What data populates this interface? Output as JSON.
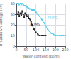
{
  "chart_data": {
    "type": "line",
    "xlabel": "Water content (ppm)",
    "ylabel": "Breakdown voltage (kV)",
    "series": [
      {
        "color": "#222222",
        "marker": "square",
        "line_style": "solid",
        "x": [
          5,
          10,
          15,
          20,
          25,
          30,
          35,
          40,
          45,
          50,
          55,
          60,
          65,
          70,
          75,
          80,
          90,
          100,
          110,
          120,
          130,
          140,
          150
        ],
        "values": [
          30,
          32,
          28,
          31,
          29,
          33,
          30,
          27,
          31,
          30,
          28,
          29,
          26,
          25,
          23,
          20,
          16,
          13,
          11,
          10,
          10,
          10,
          10
        ]
      },
      {
        "color": "#55ccee",
        "marker": "square",
        "line_style": "solid",
        "x": [
          5,
          10,
          15,
          20,
          25,
          30,
          35,
          40,
          45,
          50,
          55,
          60,
          70,
          80,
          90,
          100,
          110,
          120,
          130,
          140,
          150,
          160,
          170,
          180,
          190,
          200,
          210,
          220,
          230,
          240,
          250
        ],
        "values": [
          40,
          40,
          39,
          40,
          39,
          40,
          39,
          38,
          38,
          37,
          37,
          36,
          35,
          34,
          34,
          32,
          30,
          28,
          25,
          22,
          19,
          16,
          14,
          12,
          11,
          10,
          10,
          10,
          10,
          10,
          10
        ]
      }
    ],
    "annotations": [
      {
        "text": "PDMS",
        "x": 70,
        "y": 21,
        "color": "#222222"
      },
      {
        "text": "PMPS",
        "x": 160,
        "y": 27,
        "color": "#55ccee"
      }
    ],
    "xlim": [
      0,
      250
    ],
    "ylim": [
      0,
      40
    ],
    "xticks": [
      0,
      50,
      100,
      150,
      200,
      250
    ],
    "yticks": [
      0,
      10,
      20,
      30,
      40
    ],
    "grid": true
  }
}
